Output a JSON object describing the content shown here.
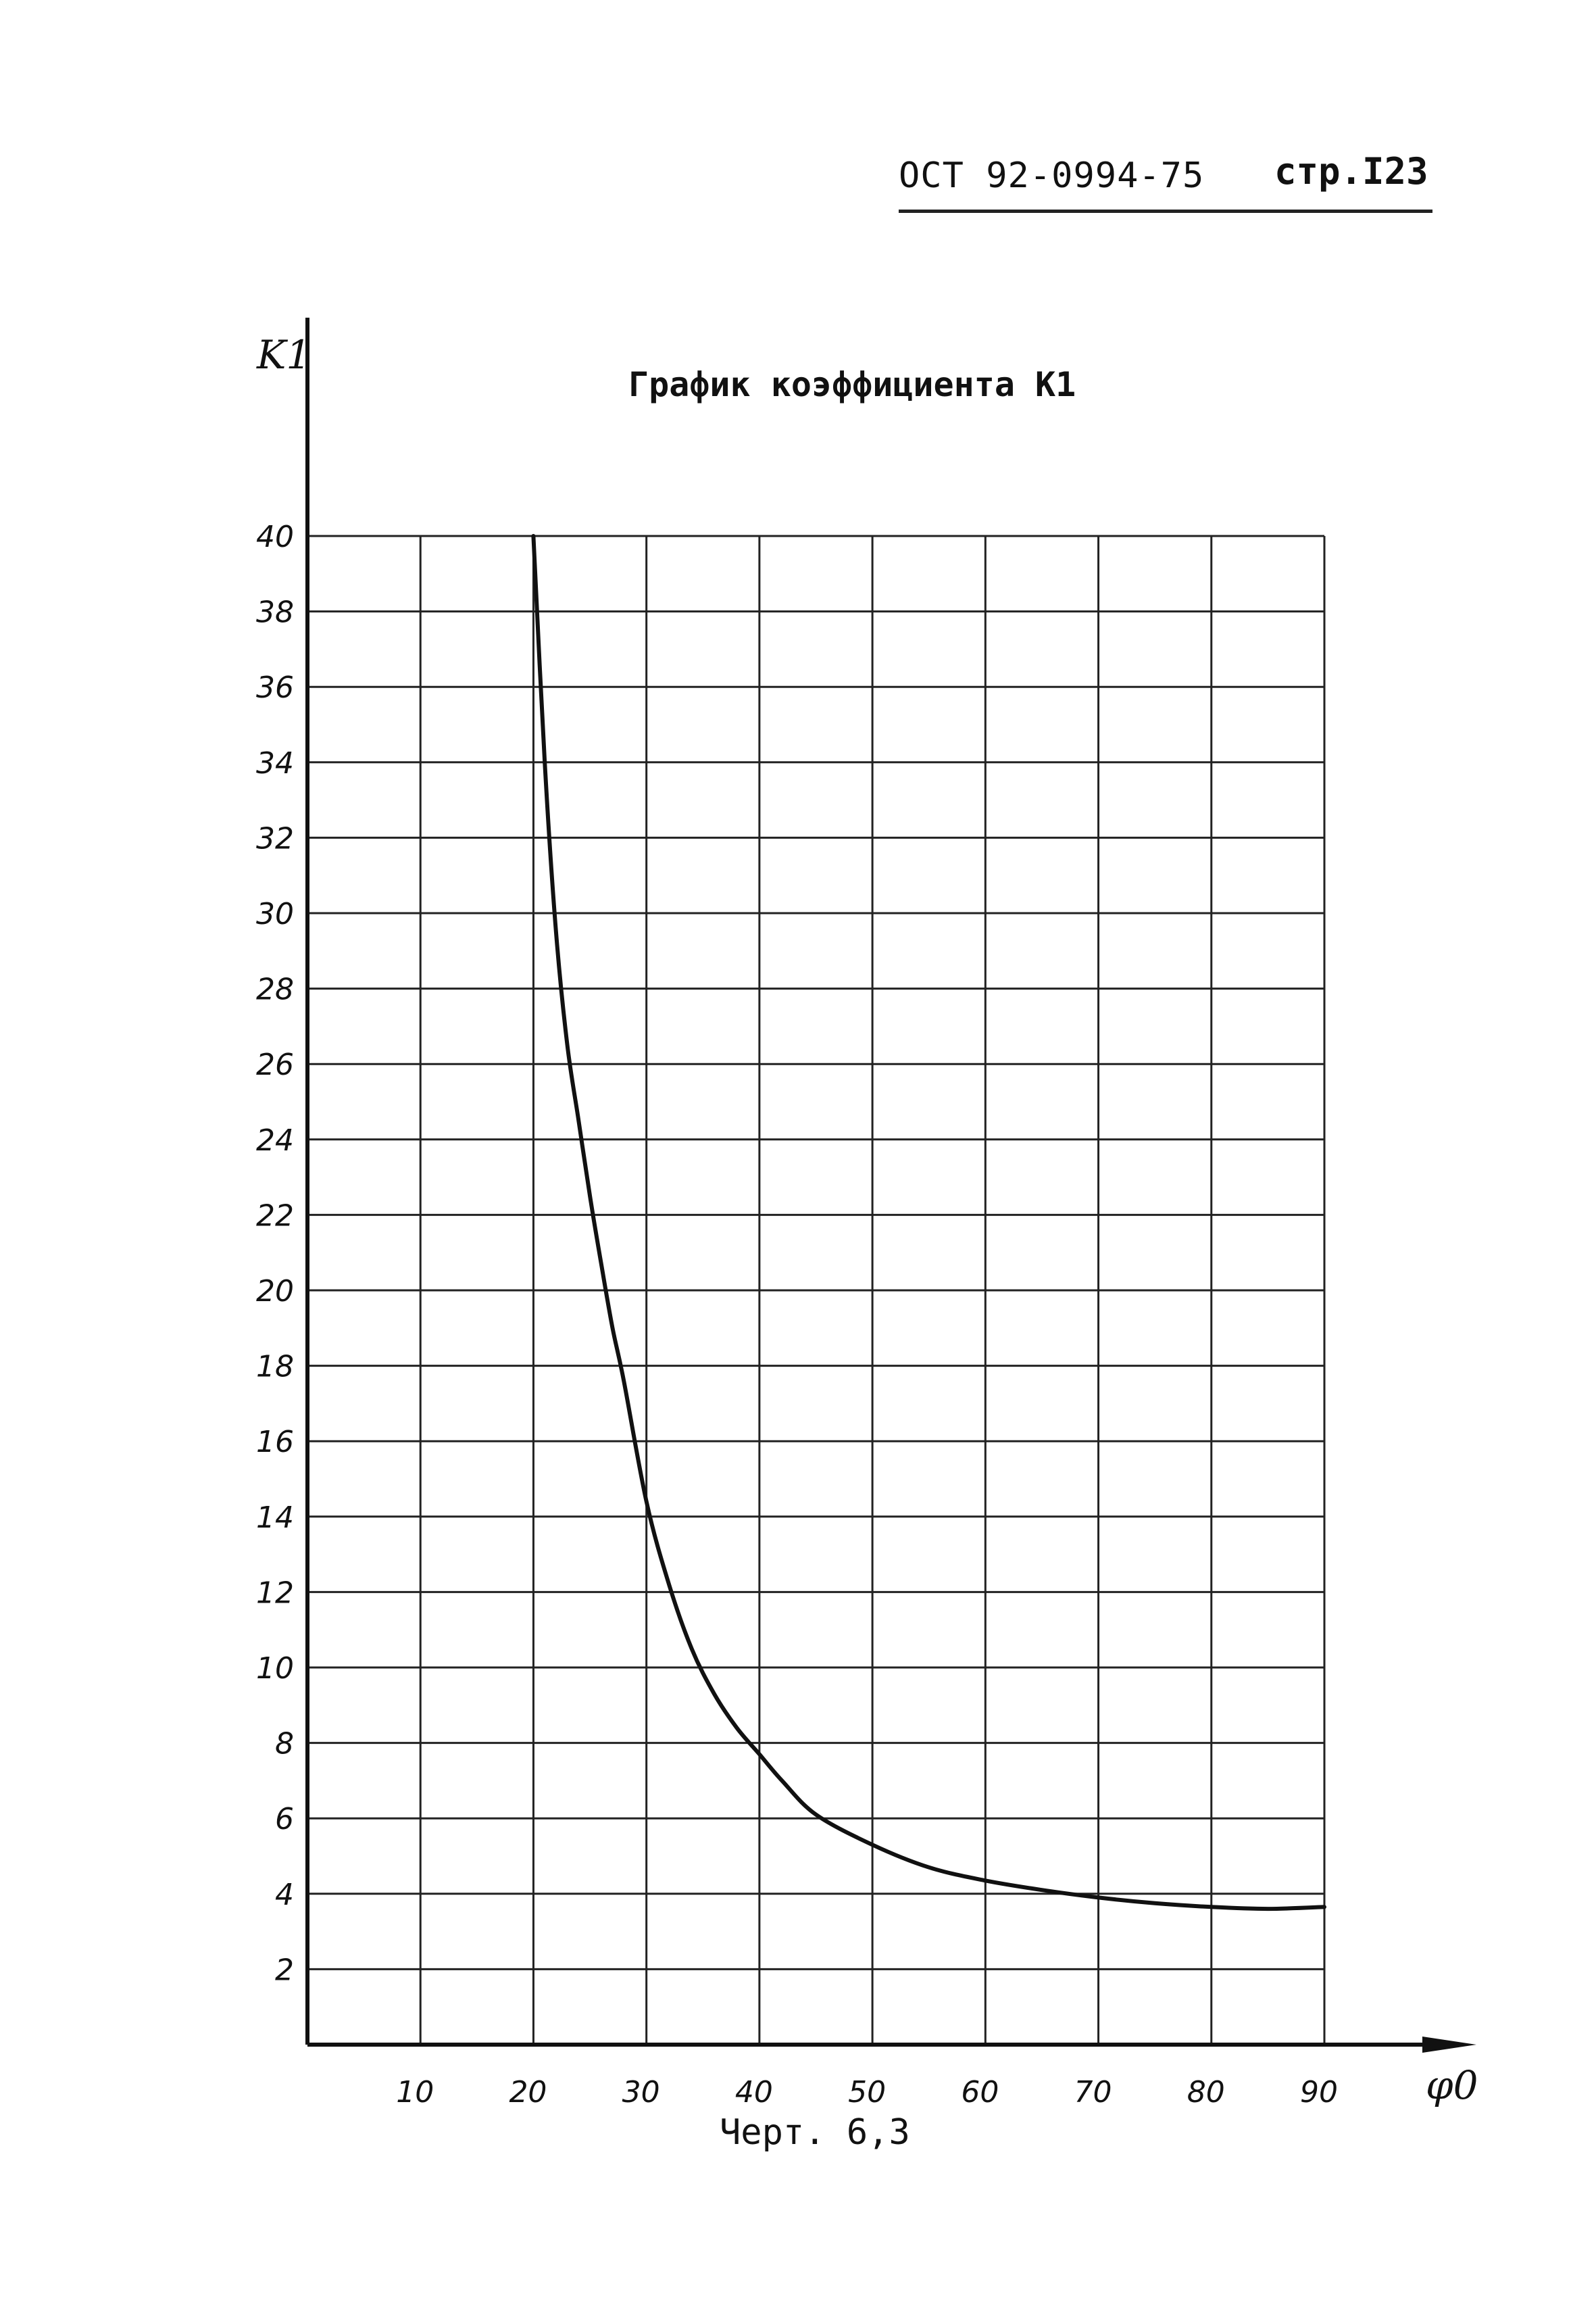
{
  "header": {
    "document_code": "ОСТ 92-0994-75",
    "page_label": "стр.I23"
  },
  "caption": "Черт. 6,3",
  "chart_data": {
    "type": "line",
    "title": "График коэффициента К1",
    "ylabel": "K1",
    "xlabel": "φ0",
    "xlim": [
      0,
      90
    ],
    "ylim": [
      0,
      40
    ],
    "x_ticks": [
      10,
      20,
      30,
      40,
      50,
      60,
      70,
      80,
      90
    ],
    "y_ticks": [
      2,
      4,
      6,
      8,
      10,
      12,
      14,
      16,
      18,
      20,
      22,
      24,
      26,
      28,
      30,
      32,
      34,
      36,
      38,
      40
    ],
    "grid": true,
    "legend": "none",
    "colors": {
      "ink": "#111111",
      "grid": "#222222"
    },
    "series": [
      {
        "x": [
          20,
          21,
          22,
          23,
          24,
          25,
          26,
          27,
          28,
          30,
          32,
          34,
          36,
          38,
          40,
          42,
          45,
          50,
          55,
          60,
          65,
          70,
          75,
          80,
          85,
          90
        ],
        "y": [
          40,
          34,
          29.5,
          26.5,
          24.5,
          22.5,
          20.7,
          19,
          17.6,
          14.4,
          12.2,
          10.5,
          9.3,
          8.4,
          7.7,
          7,
          6.1,
          5.3,
          4.7,
          4.35,
          4.1,
          3.9,
          3.75,
          3.65,
          3.6,
          3.65
        ]
      }
    ]
  }
}
